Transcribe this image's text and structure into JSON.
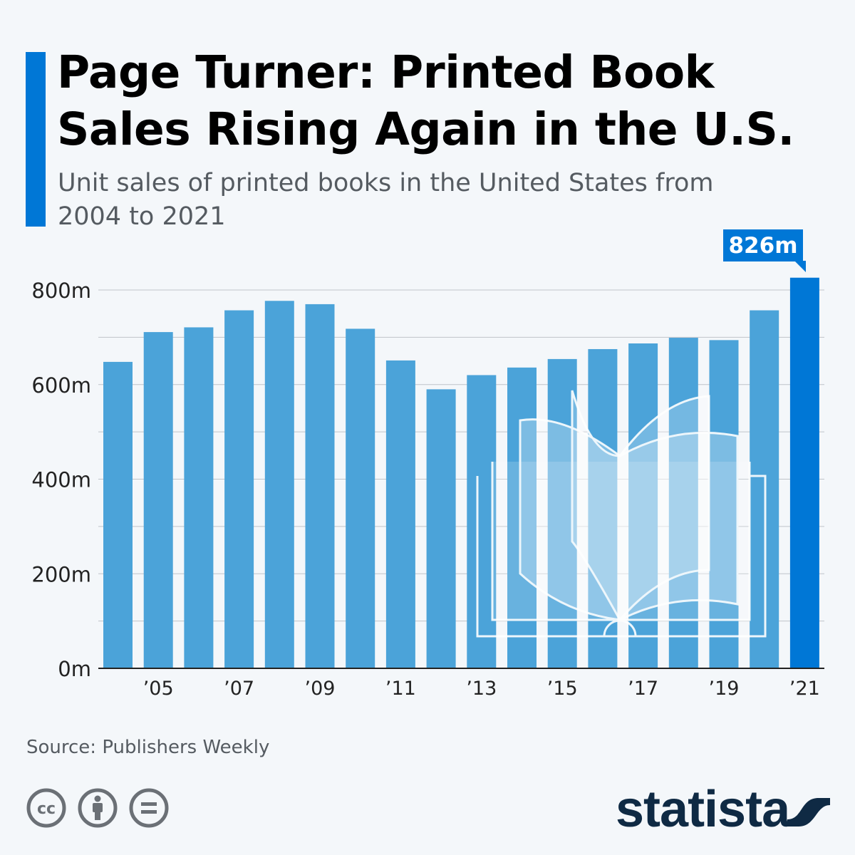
{
  "header": {
    "title": "Page Turner: Printed Book Sales Rising Again in the U.S.",
    "subtitle": "Unit sales of printed books in the United States from 2004 to 2021"
  },
  "chart_data": {
    "type": "bar",
    "categories": [
      "2004",
      "2005",
      "2006",
      "2007",
      "2008",
      "2009",
      "2010",
      "2011",
      "2012",
      "2013",
      "2014",
      "2015",
      "2016",
      "2017",
      "2018",
      "2019",
      "2020",
      "2021"
    ],
    "x_tick_labels": [
      "",
      "’05",
      "",
      "’07",
      "",
      "’09",
      "",
      "’11",
      "",
      "’13",
      "",
      "’15",
      "",
      "’17",
      "",
      "’19",
      "",
      "’21"
    ],
    "values": [
      648,
      711,
      721,
      757,
      777,
      770,
      718,
      651,
      590,
      620,
      636,
      654,
      675,
      687,
      699,
      694,
      757,
      826
    ],
    "unit": "m",
    "ylim": [
      0,
      800
    ],
    "y_ticks": [
      0,
      200,
      400,
      600,
      800
    ],
    "y_tick_labels": [
      "0m",
      "200m",
      "400m",
      "600m",
      "800m"
    ],
    "grid": true,
    "annotation": "826m",
    "colors": {
      "bar": "#4ba3d9",
      "highlight": "#0077d6"
    }
  },
  "footer": {
    "source": "Source: Publishers Weekly",
    "logo": "statista",
    "license_icons": [
      "cc-icon",
      "attribution-icon",
      "no-derivatives-icon"
    ]
  }
}
